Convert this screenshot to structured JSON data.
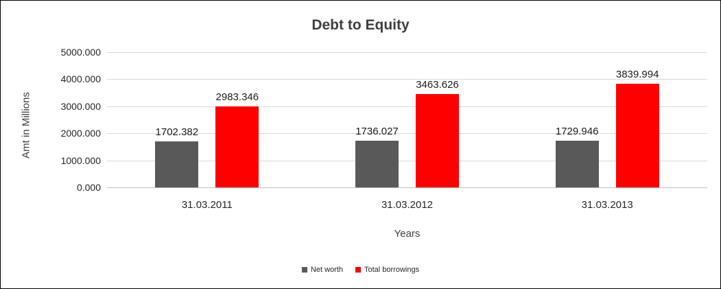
{
  "chart_data": {
    "type": "bar",
    "title": "Debt to Equity",
    "xlabel": "Years",
    "ylabel": "Amt in Millions",
    "categories": [
      "31.03.2011",
      "31.03.2012",
      "31.03.2013"
    ],
    "series": [
      {
        "name": "Net worth",
        "color": "#595959",
        "values": [
          1702.382,
          1736.027,
          1729.946
        ],
        "labels": [
          "1702.382",
          "1736.027",
          "1729.946"
        ]
      },
      {
        "name": "Total borrowings",
        "color": "#ff0000",
        "values": [
          2983.346,
          3463.626,
          3839.994
        ],
        "labels": [
          "2983.346",
          "3463.626",
          "3839.994"
        ]
      }
    ],
    "ylim": [
      0,
      5000
    ],
    "ytick_step": 1000,
    "ytick_labels": [
      "0.000",
      "1000.000",
      "2000.000",
      "3000.000",
      "4000.000",
      "5000.000"
    ],
    "grid": true,
    "legend_position": "bottom"
  }
}
